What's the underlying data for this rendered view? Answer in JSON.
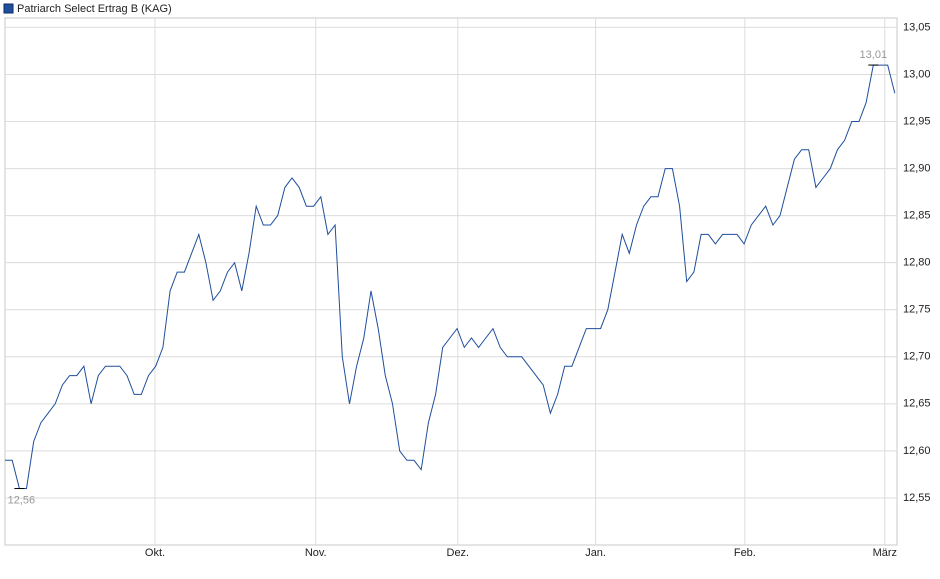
{
  "chart_data": {
    "type": "line",
    "title": "Patriarch Select Ertrag B (KAG)",
    "x": [
      0,
      1,
      2,
      3,
      4,
      5,
      6,
      7,
      8,
      9,
      10,
      11,
      12,
      13,
      14,
      15,
      16,
      17,
      18,
      19,
      20,
      21,
      22,
      23,
      24,
      25,
      26,
      27,
      28,
      29,
      30,
      31,
      32,
      33,
      34,
      35,
      36,
      37,
      38,
      39,
      40,
      41,
      42,
      43,
      44,
      45,
      46,
      47,
      48,
      49,
      50,
      51,
      52,
      53,
      54,
      55,
      56,
      57,
      58,
      59,
      60,
      61,
      62,
      63,
      64,
      65,
      66,
      67,
      68,
      69,
      70,
      71,
      72,
      73,
      74,
      75,
      76,
      77,
      78,
      79,
      80,
      81,
      82,
      83,
      84,
      85,
      86,
      87,
      88,
      89,
      90,
      91,
      92,
      93,
      94,
      95,
      96,
      97,
      98,
      99,
      100,
      101,
      102,
      103,
      104,
      105,
      106,
      107,
      108,
      109,
      110,
      111,
      112,
      113,
      114,
      115,
      116,
      117,
      118,
      119,
      120,
      121,
      122,
      123,
      124
    ],
    "series": [
      {
        "name": "Patriarch Select Ertrag B (KAG)",
        "color": "#1f4e9c",
        "values": [
          12.59,
          12.59,
          12.56,
          12.56,
          12.61,
          12.63,
          12.64,
          12.65,
          12.67,
          12.68,
          12.68,
          12.69,
          12.65,
          12.68,
          12.69,
          12.69,
          12.69,
          12.68,
          12.66,
          12.66,
          12.68,
          12.69,
          12.71,
          12.77,
          12.79,
          12.79,
          12.81,
          12.83,
          12.8,
          12.76,
          12.77,
          12.79,
          12.8,
          12.77,
          12.81,
          12.86,
          12.84,
          12.84,
          12.85,
          12.88,
          12.89,
          12.88,
          12.86,
          12.86,
          12.87,
          12.83,
          12.84,
          12.7,
          12.65,
          12.69,
          12.72,
          12.77,
          12.73,
          12.68,
          12.65,
          12.6,
          12.59,
          12.59,
          12.58,
          12.63,
          12.66,
          12.71,
          12.72,
          12.73,
          12.71,
          12.72,
          12.71,
          12.72,
          12.73,
          12.71,
          12.7,
          12.7,
          12.7,
          12.69,
          12.68,
          12.67,
          12.64,
          12.66,
          12.69,
          12.69,
          12.71,
          12.73,
          12.73,
          12.73,
          12.75,
          12.79,
          12.83,
          12.81,
          12.84,
          12.86,
          12.87,
          12.87,
          12.9,
          12.9,
          12.86,
          12.78,
          12.79,
          12.83,
          12.83,
          12.82,
          12.83,
          12.83,
          12.83,
          12.82,
          12.84,
          12.85,
          12.86,
          12.84,
          12.85,
          12.88,
          12.91,
          12.92,
          12.92,
          12.88,
          12.89,
          12.9,
          12.92,
          12.93,
          12.95,
          12.95,
          12.97,
          13.01,
          13.01,
          13.01,
          12.98
        ]
      }
    ],
    "min_label": "12,56",
    "max_label": "13,01",
    "xlim": [
      0,
      124.3
    ],
    "xticks": [
      {
        "value": 20.9,
        "label": "Okt."
      },
      {
        "value": 43.3,
        "label": "Nov."
      },
      {
        "value": 63.1,
        "label": "Dez."
      },
      {
        "value": 82.3,
        "label": "Jan."
      },
      {
        "value": 103.1,
        "label": "Feb."
      },
      {
        "value": 122.6,
        "label": "März"
      }
    ],
    "ylim": [
      12.5,
      13.06
    ],
    "yticks": [
      {
        "value": 12.55,
        "label": "12,55"
      },
      {
        "value": 12.6,
        "label": "12,60"
      },
      {
        "value": 12.65,
        "label": "12,65"
      },
      {
        "value": 12.7,
        "label": "12,70"
      },
      {
        "value": 12.75,
        "label": "12,75"
      },
      {
        "value": 12.8,
        "label": "12,80"
      },
      {
        "value": 12.85,
        "label": "12,85"
      },
      {
        "value": 12.9,
        "label": "12,90"
      },
      {
        "value": 12.95,
        "label": "12,95"
      },
      {
        "value": 13.0,
        "label": "13,00"
      },
      {
        "value": 13.05,
        "label": "13,05"
      }
    ],
    "grid": true
  }
}
